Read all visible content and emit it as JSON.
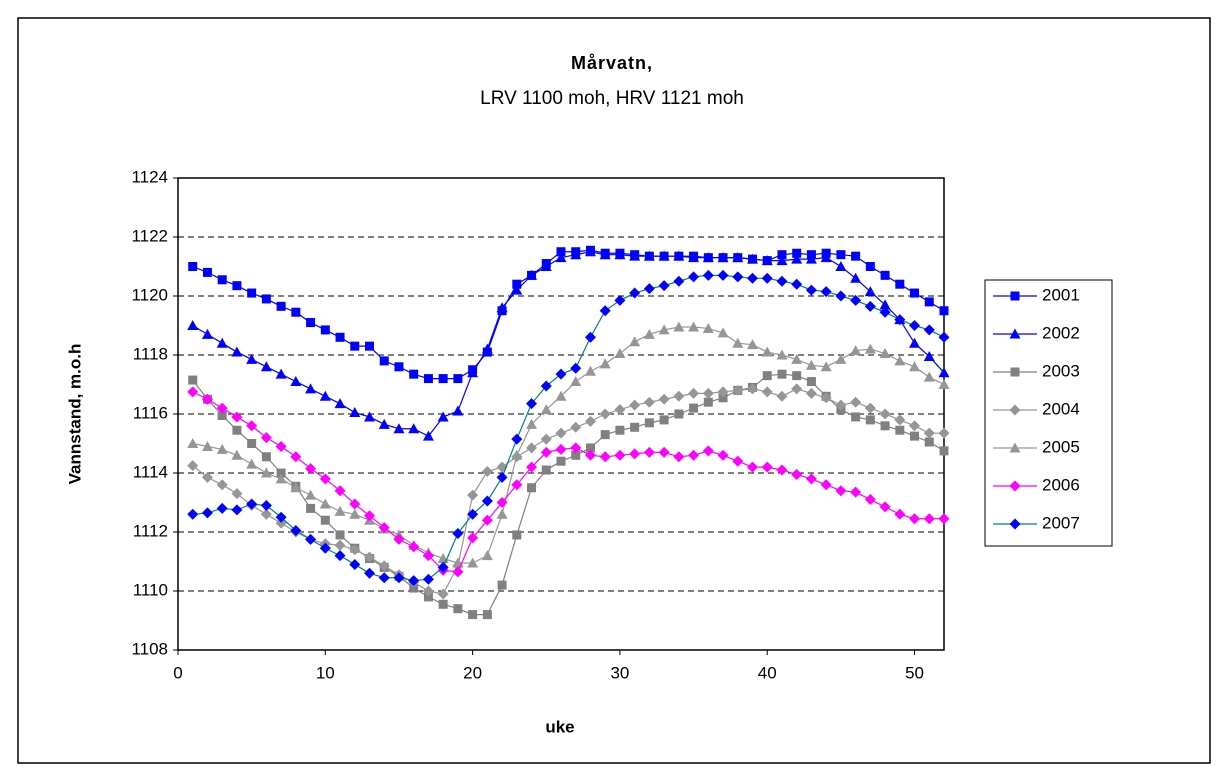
{
  "chart_data": {
    "type": "line",
    "title": "Mårvatn,",
    "subtitle": "LRV 1100 moh, HRV 1121 moh",
    "x_label": "uke",
    "y_label": "Vannstand, m.o.h",
    "x": [
      1,
      2,
      3,
      4,
      5,
      6,
      7,
      8,
      9,
      10,
      11,
      12,
      13,
      14,
      15,
      16,
      17,
      18,
      19,
      20,
      21,
      22,
      23,
      24,
      25,
      26,
      27,
      28,
      29,
      30,
      31,
      32,
      33,
      34,
      35,
      36,
      37,
      38,
      39,
      40,
      41,
      42,
      43,
      44,
      45,
      46,
      47,
      48,
      49,
      50,
      51,
      52
    ],
    "xlim": [
      0,
      52
    ],
    "xticks": [
      0,
      10,
      20,
      30,
      40,
      50
    ],
    "ylim": [
      1108,
      1124
    ],
    "yticks": [
      1108,
      1110,
      1112,
      1114,
      1116,
      1118,
      1120,
      1122,
      1124
    ],
    "grid": true,
    "legend": "right",
    "series": [
      {
        "name": "2001",
        "color": "#0000ff",
        "line_color": "#0000ff",
        "marker": "square",
        "values": [
          1121.0,
          1120.8,
          1120.55,
          1120.35,
          1120.1,
          1119.9,
          1119.65,
          1119.45,
          1119.1,
          1118.85,
          1118.6,
          1118.3,
          1118.3,
          1117.8,
          1117.6,
          1117.35,
          1117.2,
          1117.2,
          1117.2,
          1117.5,
          1118.1,
          1119.5,
          1120.4,
          1120.7,
          1121.1,
          1121.5,
          1121.5,
          1121.55,
          1121.45,
          1121.45,
          1121.4,
          1121.35,
          1121.35,
          1121.35,
          1121.35,
          1121.3,
          1121.3,
          1121.3,
          1121.25,
          1121.2,
          1121.4,
          1121.45,
          1121.4,
          1121.45,
          1121.4,
          1121.35,
          1121.0,
          1120.7,
          1120.4,
          1120.1,
          1119.8,
          1119.5
        ]
      },
      {
        "name": "2002",
        "color": "#0000ff",
        "line_color": "#0000ff",
        "marker": "triangle",
        "values": [
          1119.0,
          1118.7,
          1118.4,
          1118.1,
          1117.85,
          1117.6,
          1117.35,
          1117.1,
          1116.85,
          1116.6,
          1116.35,
          1116.05,
          1115.9,
          1115.65,
          1115.5,
          1115.5,
          1115.25,
          1115.9,
          1116.1,
          1117.4,
          1118.2,
          1119.6,
          1120.2,
          1120.7,
          1121.0,
          1121.3,
          1121.4,
          1121.5,
          1121.4,
          1121.4,
          1121.35,
          1121.35,
          1121.35,
          1121.35,
          1121.3,
          1121.3,
          1121.3,
          1121.3,
          1121.25,
          1121.2,
          1121.2,
          1121.25,
          1121.25,
          1121.3,
          1121.0,
          1120.6,
          1120.15,
          1119.7,
          1119.2,
          1118.4,
          1117.95,
          1117.4
        ]
      },
      {
        "name": "2003",
        "color": "#808080",
        "line_color": "#808080",
        "marker": "square",
        "values": [
          1117.15,
          1116.5,
          1115.95,
          1115.45,
          1115.0,
          1114.55,
          1114.0,
          1113.55,
          1112.8,
          1112.4,
          1111.9,
          1111.45,
          1111.1,
          1110.8,
          1110.5,
          1110.1,
          1109.8,
          1109.55,
          1109.4,
          1109.2,
          1109.2,
          1110.2,
          1111.9,
          1113.5,
          1114.1,
          1114.4,
          1114.6,
          1114.85,
          1115.3,
          1115.45,
          1115.55,
          1115.7,
          1115.8,
          1116.0,
          1116.2,
          1116.4,
          1116.55,
          1116.8,
          1116.9,
          1117.3,
          1117.35,
          1117.3,
          1117.1,
          1116.6,
          1116.15,
          1115.9,
          1115.8,
          1115.6,
          1115.45,
          1115.25,
          1115.05,
          1114.75
        ]
      },
      {
        "name": "2004",
        "color": "#969696",
        "line_color": "#969696",
        "marker": "diamond",
        "values": [
          1114.25,
          1113.85,
          1113.6,
          1113.3,
          1112.9,
          1112.6,
          1112.3,
          1112.0,
          1111.75,
          1111.6,
          1111.55,
          1111.4,
          1111.15,
          1110.85,
          1110.55,
          1110.3,
          1110.0,
          1109.9,
          1110.85,
          1113.25,
          1114.05,
          1114.2,
          1114.55,
          1114.85,
          1115.15,
          1115.35,
          1115.55,
          1115.75,
          1116.0,
          1116.15,
          1116.3,
          1116.4,
          1116.5,
          1116.6,
          1116.7,
          1116.7,
          1116.75,
          1116.8,
          1116.85,
          1116.75,
          1116.6,
          1116.85,
          1116.7,
          1116.55,
          1116.3,
          1116.4,
          1116.2,
          1116.0,
          1115.8,
          1115.6,
          1115.35,
          1115.35
        ]
      },
      {
        "name": "2005",
        "color": "#969696",
        "line_color": "#969696",
        "marker": "triangle",
        "values": [
          1115.0,
          1114.9,
          1114.8,
          1114.6,
          1114.3,
          1114.0,
          1113.8,
          1113.5,
          1113.25,
          1112.95,
          1112.7,
          1112.6,
          1112.4,
          1112.1,
          1111.9,
          1111.55,
          1111.3,
          1111.1,
          1110.95,
          1110.95,
          1111.2,
          1112.6,
          1114.6,
          1115.65,
          1116.15,
          1116.6,
          1117.1,
          1117.45,
          1117.7,
          1118.05,
          1118.45,
          1118.7,
          1118.85,
          1118.95,
          1118.95,
          1118.9,
          1118.75,
          1118.4,
          1118.35,
          1118.1,
          1118.0,
          1117.85,
          1117.65,
          1117.6,
          1117.85,
          1118.15,
          1118.2,
          1118.05,
          1117.8,
          1117.6,
          1117.25,
          1117.0
        ]
      },
      {
        "name": "2006",
        "color": "#ff00ff",
        "line_color": "#ff00ff",
        "marker": "diamond",
        "values": [
          1116.75,
          1116.5,
          1116.2,
          1115.9,
          1115.6,
          1115.2,
          1114.9,
          1114.55,
          1114.15,
          1113.8,
          1113.4,
          1112.95,
          1112.55,
          1112.15,
          1111.75,
          1111.5,
          1111.2,
          1110.7,
          1110.65,
          1111.8,
          1112.4,
          1113.0,
          1113.6,
          1114.2,
          1114.7,
          1114.8,
          1114.85,
          1114.6,
          1114.55,
          1114.6,
          1114.65,
          1114.7,
          1114.7,
          1114.55,
          1114.6,
          1114.75,
          1114.6,
          1114.4,
          1114.2,
          1114.2,
          1114.1,
          1113.95,
          1113.8,
          1113.6,
          1113.4,
          1113.35,
          1113.1,
          1112.85,
          1112.6,
          1112.45,
          1112.45,
          1112.45
        ]
      },
      {
        "name": "2007",
        "color": "#0000ff",
        "line_color": "#008080",
        "marker": "diamond",
        "values": [
          1112.6,
          1112.65,
          1112.8,
          1112.75,
          1112.95,
          1112.9,
          1112.5,
          1112.05,
          1111.75,
          1111.45,
          1111.2,
          1110.9,
          1110.6,
          1110.45,
          1110.45,
          1110.35,
          1110.4,
          1110.8,
          1111.95,
          1112.6,
          1113.05,
          1113.85,
          1115.15,
          1116.35,
          1116.95,
          1117.35,
          1117.55,
          1118.6,
          1119.5,
          1119.85,
          1120.1,
          1120.25,
          1120.35,
          1120.5,
          1120.65,
          1120.7,
          1120.7,
          1120.65,
          1120.6,
          1120.6,
          1120.5,
          1120.4,
          1120.2,
          1120.15,
          1120.0,
          1119.85,
          1119.65,
          1119.45,
          1119.2,
          1119.0,
          1118.85,
          1118.6
        ]
      }
    ]
  }
}
